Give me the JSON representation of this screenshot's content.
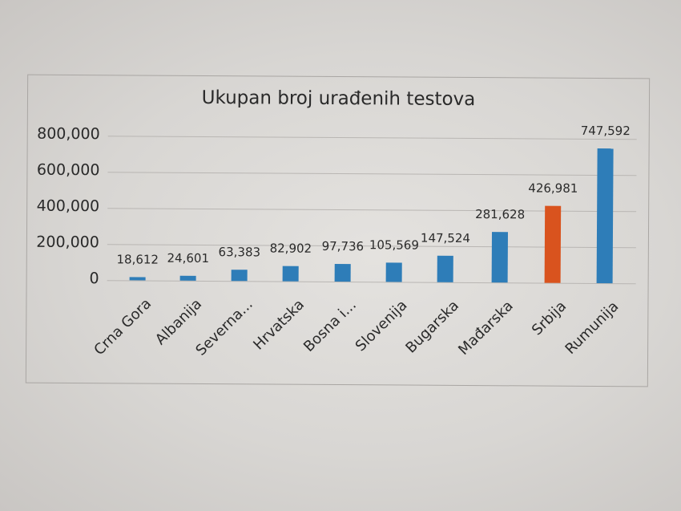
{
  "page": {
    "background_color": "#d9d7d4",
    "frame_border_color": "#a9a6a3"
  },
  "chart_data": {
    "type": "bar",
    "title": "Ukupan broj urađenih testova",
    "xlabel": "",
    "ylabel": "",
    "ylim": [
      0,
      800000
    ],
    "yticks": [
      0,
      200000,
      400000,
      600000,
      800000
    ],
    "ytick_labels": [
      "0",
      "200,000",
      "400,000",
      "600,000",
      "800,000"
    ],
    "grid": true,
    "legend": null,
    "categories": [
      "Crna Gora",
      "Albanija",
      "Severna...",
      "Hrvatska",
      "Bosna i...",
      "Slovenija",
      "Bugarska",
      "Mađarska",
      "Srbija",
      "Rumunija"
    ],
    "values": [
      18612,
      24601,
      63383,
      82902,
      97736,
      105569,
      147524,
      281628,
      426981,
      747592
    ],
    "value_labels": [
      "18,612",
      "24,601",
      "63,383",
      "82,902",
      "97,736",
      "105,569",
      "147,524",
      "281,628",
      "426,981",
      "747,592"
    ],
    "colors": [
      "#2e7db8",
      "#2e7db8",
      "#2e7db8",
      "#2e7db8",
      "#2e7db8",
      "#2e7db8",
      "#2e7db8",
      "#2e7db8",
      "#d9531e",
      "#2e7db8"
    ],
    "highlight": {
      "category": "Srbija",
      "color": "#d9531e"
    },
    "default_color": "#2e7db8"
  }
}
